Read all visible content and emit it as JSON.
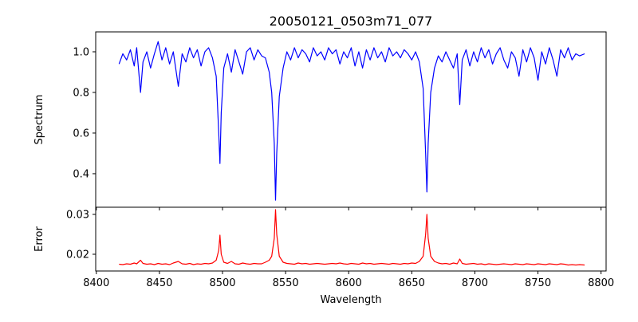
{
  "chart_data": [
    {
      "type": "line",
      "title": "20050121_0503m71_077",
      "xlabel": "",
      "ylabel": "Spectrum",
      "xlim": [
        8399.5,
        8804
      ],
      "ylim": [
        0.235,
        1.098
      ],
      "xticks": [
        8400,
        8450,
        8500,
        8550,
        8600,
        8650,
        8700,
        8750,
        8800
      ],
      "yticks": [
        0.4,
        0.6,
        0.8,
        1.0
      ],
      "ytick_labels": [
        "0.4",
        "0.6",
        "0.8",
        "1.0"
      ],
      "color": "#0000ff",
      "grid": false,
      "series_key": "spectrum"
    },
    {
      "type": "line",
      "title": "",
      "xlabel": "Wavelength",
      "ylabel": "Error",
      "xlim": [
        8399.5,
        8804
      ],
      "ylim": [
        0.0158,
        0.0318
      ],
      "xticks": [
        8400,
        8450,
        8500,
        8550,
        8600,
        8650,
        8700,
        8750,
        8800
      ],
      "xtick_labels": [
        "8400",
        "8450",
        "8500",
        "8550",
        "8600",
        "8650",
        "8700",
        "8750",
        "8800"
      ],
      "yticks": [
        0.02,
        0.03
      ],
      "ytick_labels": [
        "0.02",
        "0.03"
      ],
      "color": "#ff0000",
      "grid": false,
      "series_key": "error"
    }
  ],
  "series": {
    "x": [
      8418,
      8421,
      8424,
      8427,
      8430,
      8432,
      8435,
      8437,
      8440,
      8443,
      8446,
      8449,
      8452,
      8455,
      8458,
      8461,
      8465,
      8468,
      8471,
      8474,
      8477,
      8480,
      8483,
      8486,
      8489,
      8492,
      8495,
      8497,
      8498,
      8499,
      8501,
      8504,
      8507,
      8510,
      8513,
      8516,
      8519,
      8522,
      8525,
      8528,
      8531,
      8534,
      8537,
      8539,
      8541,
      8542,
      8543,
      8545,
      8548,
      8551,
      8554,
      8557,
      8560,
      8563,
      8566,
      8569,
      8572,
      8575,
      8578,
      8581,
      8584,
      8587,
      8590,
      8593,
      8596,
      8599,
      8602,
      8605,
      8608,
      8611,
      8614,
      8617,
      8620,
      8623,
      8626,
      8629,
      8632,
      8635,
      8638,
      8641,
      8644,
      8647,
      8650,
      8653,
      8656,
      8659,
      8661,
      8662,
      8663,
      8665,
      8668,
      8671,
      8674,
      8677,
      8680,
      8683,
      8686,
      8688,
      8690,
      8693,
      8696,
      8699,
      8702,
      8705,
      8708,
      8711,
      8714,
      8717,
      8720,
      8723,
      8726,
      8729,
      8732,
      8735,
      8738,
      8741,
      8744,
      8747,
      8750,
      8753,
      8756,
      8759,
      8762,
      8765,
      8768,
      8771,
      8774,
      8777,
      8780,
      8783,
      8787
    ],
    "spectrum": [
      0.94,
      0.99,
      0.96,
      1.01,
      0.93,
      1.02,
      0.8,
      0.95,
      1.0,
      0.92,
      0.99,
      1.05,
      0.96,
      1.02,
      0.94,
      1.0,
      0.83,
      0.99,
      0.95,
      1.02,
      0.97,
      1.01,
      0.93,
      1.0,
      1.02,
      0.97,
      0.88,
      0.6,
      0.45,
      0.7,
      0.92,
      0.99,
      0.9,
      1.01,
      0.95,
      0.89,
      1.0,
      1.02,
      0.96,
      1.01,
      0.98,
      0.97,
      0.9,
      0.8,
      0.55,
      0.27,
      0.5,
      0.78,
      0.92,
      1.0,
      0.96,
      1.02,
      0.97,
      1.01,
      0.99,
      0.95,
      1.02,
      0.98,
      1.0,
      0.96,
      1.02,
      0.99,
      1.01,
      0.94,
      1.0,
      0.97,
      1.02,
      0.93,
      1.0,
      0.92,
      1.01,
      0.96,
      1.02,
      0.97,
      1.0,
      0.95,
      1.02,
      0.98,
      1.0,
      0.97,
      1.01,
      0.99,
      0.96,
      1.0,
      0.95,
      0.82,
      0.5,
      0.31,
      0.55,
      0.8,
      0.92,
      0.98,
      0.95,
      1.0,
      0.96,
      0.92,
      0.99,
      0.74,
      0.96,
      1.01,
      0.93,
      1.0,
      0.95,
      1.02,
      0.97,
      1.01,
      0.94,
      0.99,
      1.02,
      0.96,
      0.92,
      1.0,
      0.97,
      0.88,
      1.01,
      0.95,
      1.02,
      0.97,
      0.86,
      1.0,
      0.94,
      1.02,
      0.96,
      0.88,
      1.01,
      0.97,
      1.02,
      0.96,
      0.99,
      0.98,
      0.99
    ],
    "error": [
      0.0175,
      0.0174,
      0.0176,
      0.0175,
      0.0178,
      0.0176,
      0.0185,
      0.0177,
      0.0175,
      0.0176,
      0.0174,
      0.0177,
      0.0175,
      0.0176,
      0.0174,
      0.0178,
      0.0182,
      0.0176,
      0.0175,
      0.0177,
      0.0174,
      0.0176,
      0.0175,
      0.0177,
      0.0176,
      0.0178,
      0.0185,
      0.021,
      0.0248,
      0.02,
      0.018,
      0.0177,
      0.0182,
      0.0176,
      0.0175,
      0.0178,
      0.0176,
      0.0175,
      0.0177,
      0.0176,
      0.0176,
      0.018,
      0.0185,
      0.0195,
      0.024,
      0.0312,
      0.025,
      0.0195,
      0.018,
      0.0177,
      0.0176,
      0.0175,
      0.0178,
      0.0176,
      0.0177,
      0.0175,
      0.0176,
      0.0177,
      0.0176,
      0.0175,
      0.0176,
      0.0177,
      0.0176,
      0.0178,
      0.0176,
      0.0175,
      0.0177,
      0.0176,
      0.0175,
      0.0178,
      0.0176,
      0.0177,
      0.0175,
      0.0176,
      0.0177,
      0.0176,
      0.0175,
      0.0177,
      0.0176,
      0.0175,
      0.0177,
      0.0176,
      0.0178,
      0.0177,
      0.0182,
      0.0195,
      0.025,
      0.03,
      0.024,
      0.0195,
      0.0182,
      0.0178,
      0.0176,
      0.0177,
      0.0175,
      0.0178,
      0.0176,
      0.0188,
      0.0177,
      0.0175,
      0.0176,
      0.0177,
      0.0175,
      0.0176,
      0.0174,
      0.0176,
      0.0175,
      0.0174,
      0.0175,
      0.0176,
      0.0175,
      0.0174,
      0.0176,
      0.0175,
      0.0174,
      0.0176,
      0.0175,
      0.0174,
      0.0176,
      0.0175,
      0.0174,
      0.0176,
      0.0175,
      0.0174,
      0.0176,
      0.0175,
      0.0173,
      0.0174,
      0.0173,
      0.0174,
      0.0173
    ]
  }
}
